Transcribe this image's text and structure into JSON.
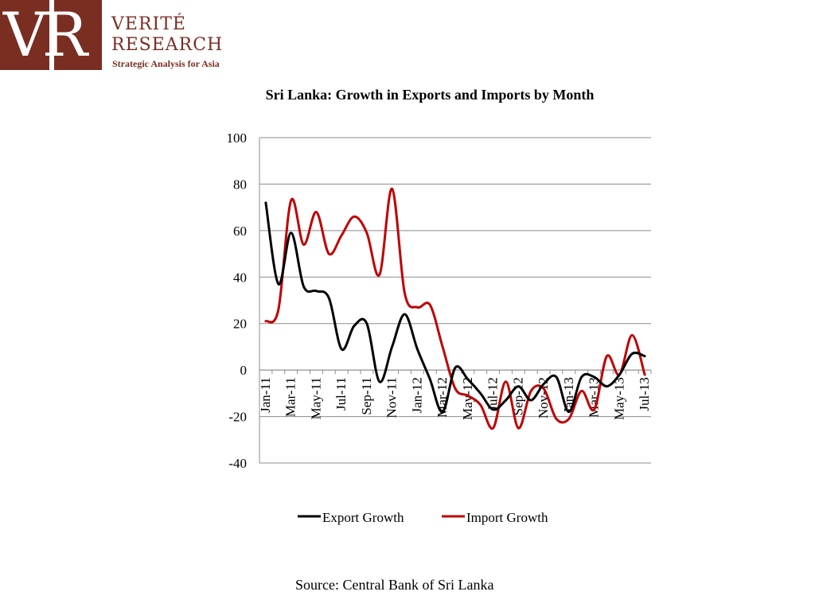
{
  "logo": {
    "monogram": "VR",
    "brand_line1": "VERITÉ",
    "brand_line2": "RESEARCH",
    "tagline": "Strategic Analysis for Asia"
  },
  "source_note": "Source: Central Bank of Sri Lanka",
  "chart_data": {
    "type": "line",
    "title": "Sri Lanka: Growth in Exports and Imports by Month",
    "xlabel": "",
    "ylabel": "",
    "ylim": [
      -40,
      100
    ],
    "yticks": [
      100,
      80,
      60,
      40,
      20,
      0,
      -20,
      -40
    ],
    "grid": true,
    "legend_position": "bottom",
    "x": [
      "Jan-11",
      "Feb-11",
      "Mar-11",
      "Apr-11",
      "May-11",
      "Jun-11",
      "Jul-11",
      "Aug-11",
      "Sep-11",
      "Oct-11",
      "Nov-11",
      "Dec-11",
      "Jan-12",
      "Feb-12",
      "Mar-12",
      "Apr-12",
      "May-12",
      "Jun-12",
      "Jul-12",
      "Aug-12",
      "Sep-12",
      "Oct-12",
      "Nov-12",
      "Dec-12",
      "Jan-13",
      "Feb-13",
      "Mar-13",
      "Apr-13",
      "May-13",
      "Jun-13",
      "Jul-13"
    ],
    "x_tick_labels": [
      "Jan-11",
      "Mar-11",
      "May-11",
      "Jul-11",
      "Sep-11",
      "Nov-11",
      "Jan-12",
      "Mar-12",
      "May-12",
      "Jul-12",
      "Sep-12",
      "Nov-12",
      "Jan-13",
      "Mar-13",
      "May-13",
      "Jul-13"
    ],
    "series": [
      {
        "name": "Export Growth",
        "color": "#000000",
        "values": [
          72,
          37,
          59,
          36,
          34,
          31,
          9,
          19,
          20,
          -5,
          10,
          24,
          9,
          -4,
          -18,
          1,
          -4,
          -10,
          -17,
          -13,
          -7,
          -13,
          -6,
          -3,
          -18,
          -3,
          -3,
          -7,
          -2,
          7,
          6
        ]
      },
      {
        "name": "Import Growth",
        "color": "#c00000",
        "values": [
          21,
          26,
          73,
          54,
          68,
          50,
          58,
          66,
          59,
          41,
          78,
          33,
          27,
          28,
          10,
          -8,
          -11,
          -15,
          -25,
          -5,
          -25,
          -9,
          -8,
          -21,
          -21,
          -9,
          -17,
          6,
          -2,
          15,
          -2
        ]
      }
    ]
  }
}
